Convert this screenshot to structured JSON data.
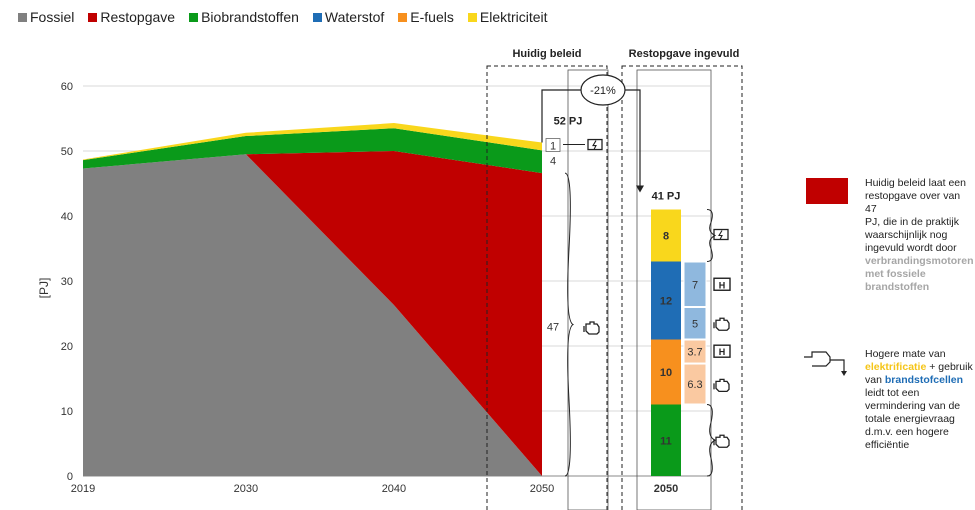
{
  "colors": {
    "Fossiel": "#808080",
    "Restopgave": "#c00000",
    "Biobrandstoffen": "#0a9a1a",
    "Waterstof": "#1f6db5",
    "E-fuels": "#f7901e",
    "Elektriciteit": "#f9d71c",
    "waterstof_light": "#8fb8de",
    "efuels_light": "#fac9a1"
  },
  "chart_data": {
    "type": "area",
    "x": [
      2019,
      2030,
      2040,
      2050
    ],
    "ylabel": "[PJ]",
    "ylim": [
      0,
      60
    ],
    "yticks": [
      0,
      10,
      20,
      30,
      40,
      50,
      60
    ],
    "legend_position": "top-left",
    "series": [
      {
        "name": "Fossiel",
        "values": [
          47.3,
          49.5,
          26.3,
          0
        ]
      },
      {
        "name": "Restopgave",
        "values": [
          0,
          0,
          23.7,
          46.6
        ]
      },
      {
        "name": "Biobrandstoffen",
        "values": [
          1.3,
          2.8,
          3.5,
          3.5
        ]
      },
      {
        "name": "Elektriciteit",
        "values": [
          0.1,
          0.5,
          0.8,
          1.2
        ]
      }
    ],
    "huidig_beleid": {
      "header": "Huidig beleid",
      "total": "52 PJ",
      "labels": {
        "elektriciteit": "1",
        "bio": "4",
        "rest": "47"
      }
    },
    "restopgave_ingevuld": {
      "header": "Restopgave ingevuld",
      "total": "41 PJ",
      "year_label": "2050",
      "stack": [
        {
          "name": "Biobrandstoffen",
          "value": 11,
          "label": "11"
        },
        {
          "name": "E-fuels",
          "value": 10,
          "label": "10"
        },
        {
          "name": "Waterstof",
          "value": 12,
          "label": "12"
        },
        {
          "name": "Elektriciteit",
          "value": 8,
          "label": "8"
        }
      ],
      "splits": [
        {
          "parent": "E-fuels",
          "value": 6.3,
          "label": "6.3",
          "use": "engine"
        },
        {
          "parent": "E-fuels",
          "value": 3.7,
          "label": "3.7",
          "use": "fuelcell"
        },
        {
          "parent": "Waterstof",
          "value": 5,
          "label": "5",
          "use": "engine"
        },
        {
          "parent": "Waterstof",
          "value": 7,
          "label": "7",
          "use": "fuelcell"
        }
      ]
    },
    "reduction_label": "-21%"
  },
  "notes": {
    "red": {
      "t1": "Huidig beleid laat een",
      "t2": "restopgave over van 47",
      "t3": "PJ, die in de praktijk",
      "t4": "waarschijnlijk  nog",
      "t5": "ingevuld wordt door",
      "h1": "verbrandingsmotoren",
      "h2": "met fossiele",
      "h3": "brandstoffen"
    },
    "arrow": {
      "t1": "Hogere mate van",
      "h1": "elektrificatie",
      "t2": " + gebruik",
      "t3": "van ",
      "h2": "brandstofcellen",
      "t4": "leidt tot een",
      "t5": "vermindering van de",
      "t6": "totale energievraag",
      "t7": "d.m.v. een hogere",
      "t8": "efficiëntie"
    }
  }
}
